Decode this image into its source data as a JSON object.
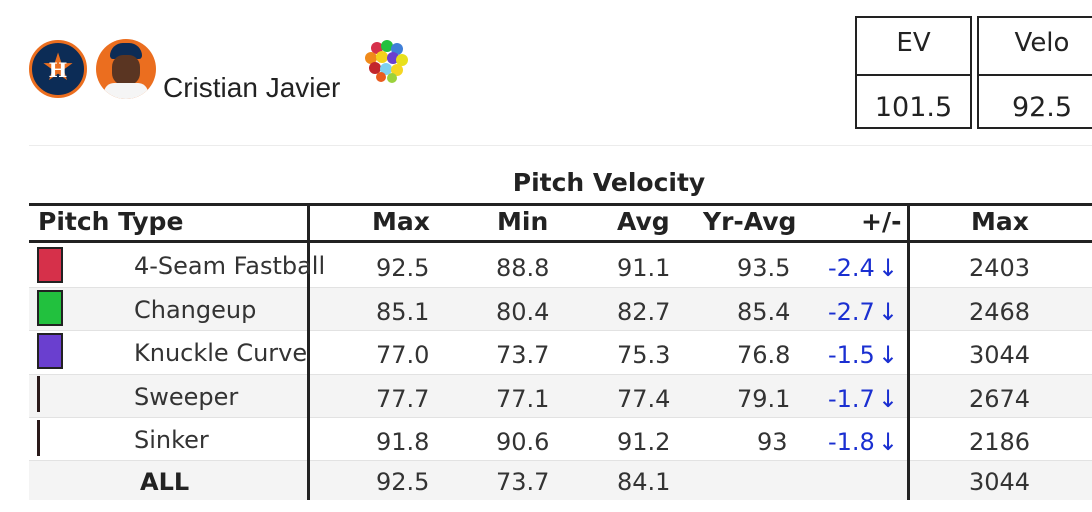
{
  "header": {
    "player_name": "Cristian Javier",
    "team_logo_icon": "astros-logo-icon",
    "avatar_icon": "player-headshot-icon",
    "pitch_icon": "pitch-colors-icon"
  },
  "stats": [
    {
      "label": "EV",
      "value": "101.5"
    },
    {
      "label": "Velo",
      "value": "92.5"
    }
  ],
  "table": {
    "title": "Pitch Velocity",
    "columns": [
      "Pitch Type",
      "Max",
      "Min",
      "Avg",
      "Yr-Avg",
      "+/-",
      "Max"
    ],
    "rows": [
      {
        "pitch": "4-Seam Fastball",
        "color": "#d6304a",
        "max": "92.5",
        "min": "88.8",
        "avg": "91.1",
        "yr_avg": "93.5",
        "diff": "-2.4",
        "arrow": "↓",
        "spin_max": "2403"
      },
      {
        "pitch": "Changeup",
        "color": "#22c13e",
        "max": "85.1",
        "min": "80.4",
        "avg": "82.7",
        "yr_avg": "85.4",
        "diff": "-2.7",
        "arrow": "↓",
        "spin_max": "2468"
      },
      {
        "pitch": "Knuckle Curve",
        "color": "#6a3fcf",
        "max": "77.0",
        "min": "73.7",
        "avg": "75.3",
        "yr_avg": "76.8",
        "diff": "-1.5",
        "arrow": "↓",
        "spin_max": "3044"
      },
      {
        "pitch": "Sweeper",
        "color": "#2a1a1a",
        "max": "77.7",
        "min": "77.1",
        "avg": "77.4",
        "yr_avg": "79.1",
        "diff": "-1.7",
        "arrow": "↓",
        "spin_max": "2674"
      },
      {
        "pitch": "Sinker",
        "color": "#2a1a1a",
        "max": "91.8",
        "min": "90.6",
        "avg": "91.2",
        "yr_avg": "93",
        "diff": "-1.8",
        "arrow": "↓",
        "spin_max": "2186"
      }
    ],
    "total": {
      "label": "ALL",
      "max": "92.5",
      "min": "73.7",
      "avg": "84.1",
      "spin_max": "3044"
    }
  }
}
